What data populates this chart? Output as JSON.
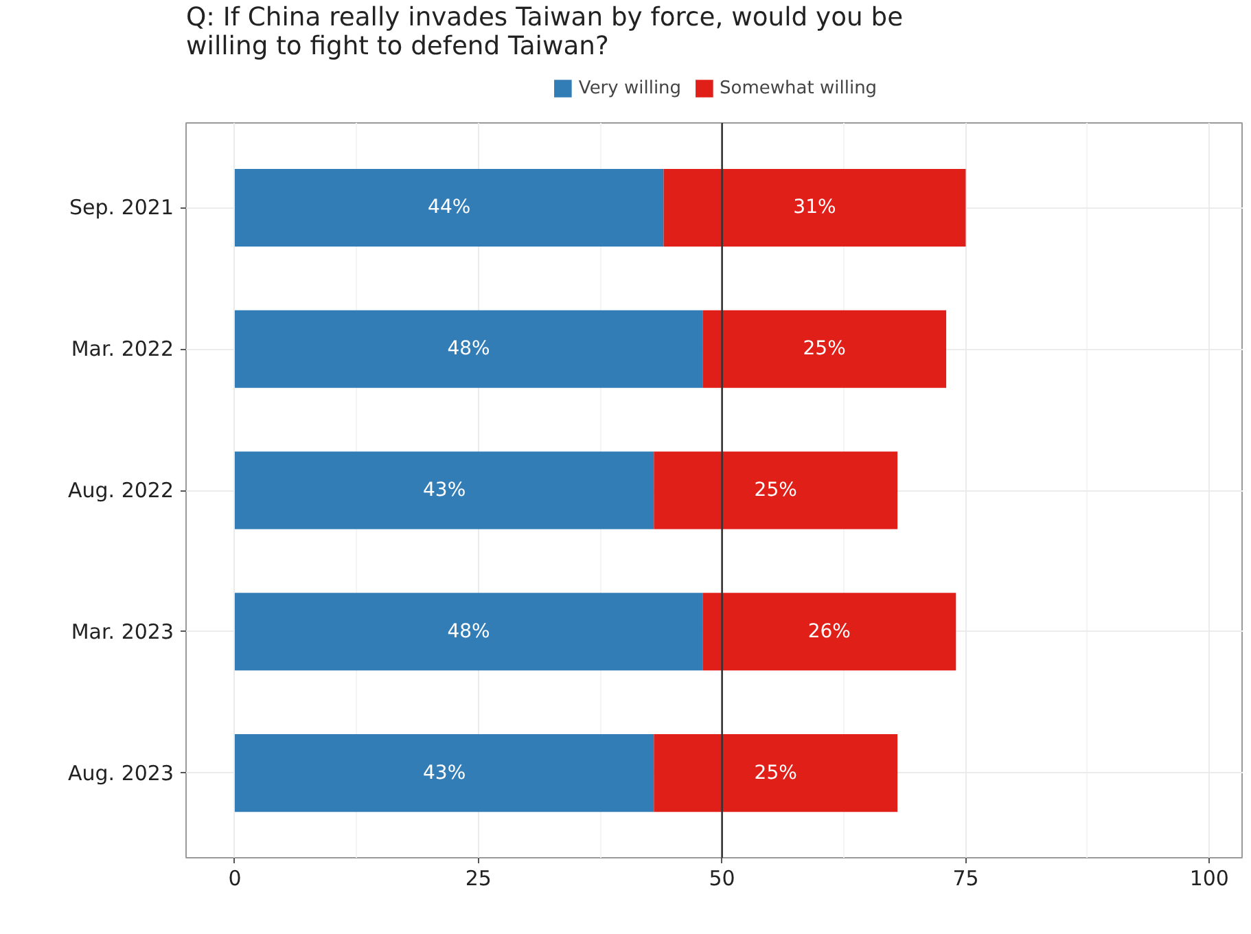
{
  "chart_data": {
    "type": "bar",
    "orientation": "horizontal",
    "stacked": true,
    "title": "Q: If China really invades Taiwan by force, would you be willing to fight to defend Taiwan?",
    "categories": [
      "Sep. 2021",
      "Mar. 2022",
      "Aug. 2022",
      "Mar. 2023",
      "Aug. 2023"
    ],
    "series": [
      {
        "name": "Very willing",
        "color": "#337db6",
        "values": [
          44,
          48,
          43,
          48,
          43
        ],
        "value_labels": [
          "44%",
          "48%",
          "43%",
          "48%",
          "43%"
        ]
      },
      {
        "name": "Somewhat willing",
        "color": "#e11f19",
        "values": [
          31,
          25,
          25,
          26,
          25
        ],
        "value_labels": [
          "31%",
          "25%",
          "25%",
          "26%",
          "25%"
        ]
      }
    ],
    "xlim": [
      -5,
      103.5
    ],
    "xticks": [
      0,
      25,
      50,
      75,
      100
    ],
    "ref_lines": [
      {
        "axis": "x",
        "value": 50,
        "color": "#333333"
      }
    ],
    "grid": true,
    "legend": "top"
  }
}
